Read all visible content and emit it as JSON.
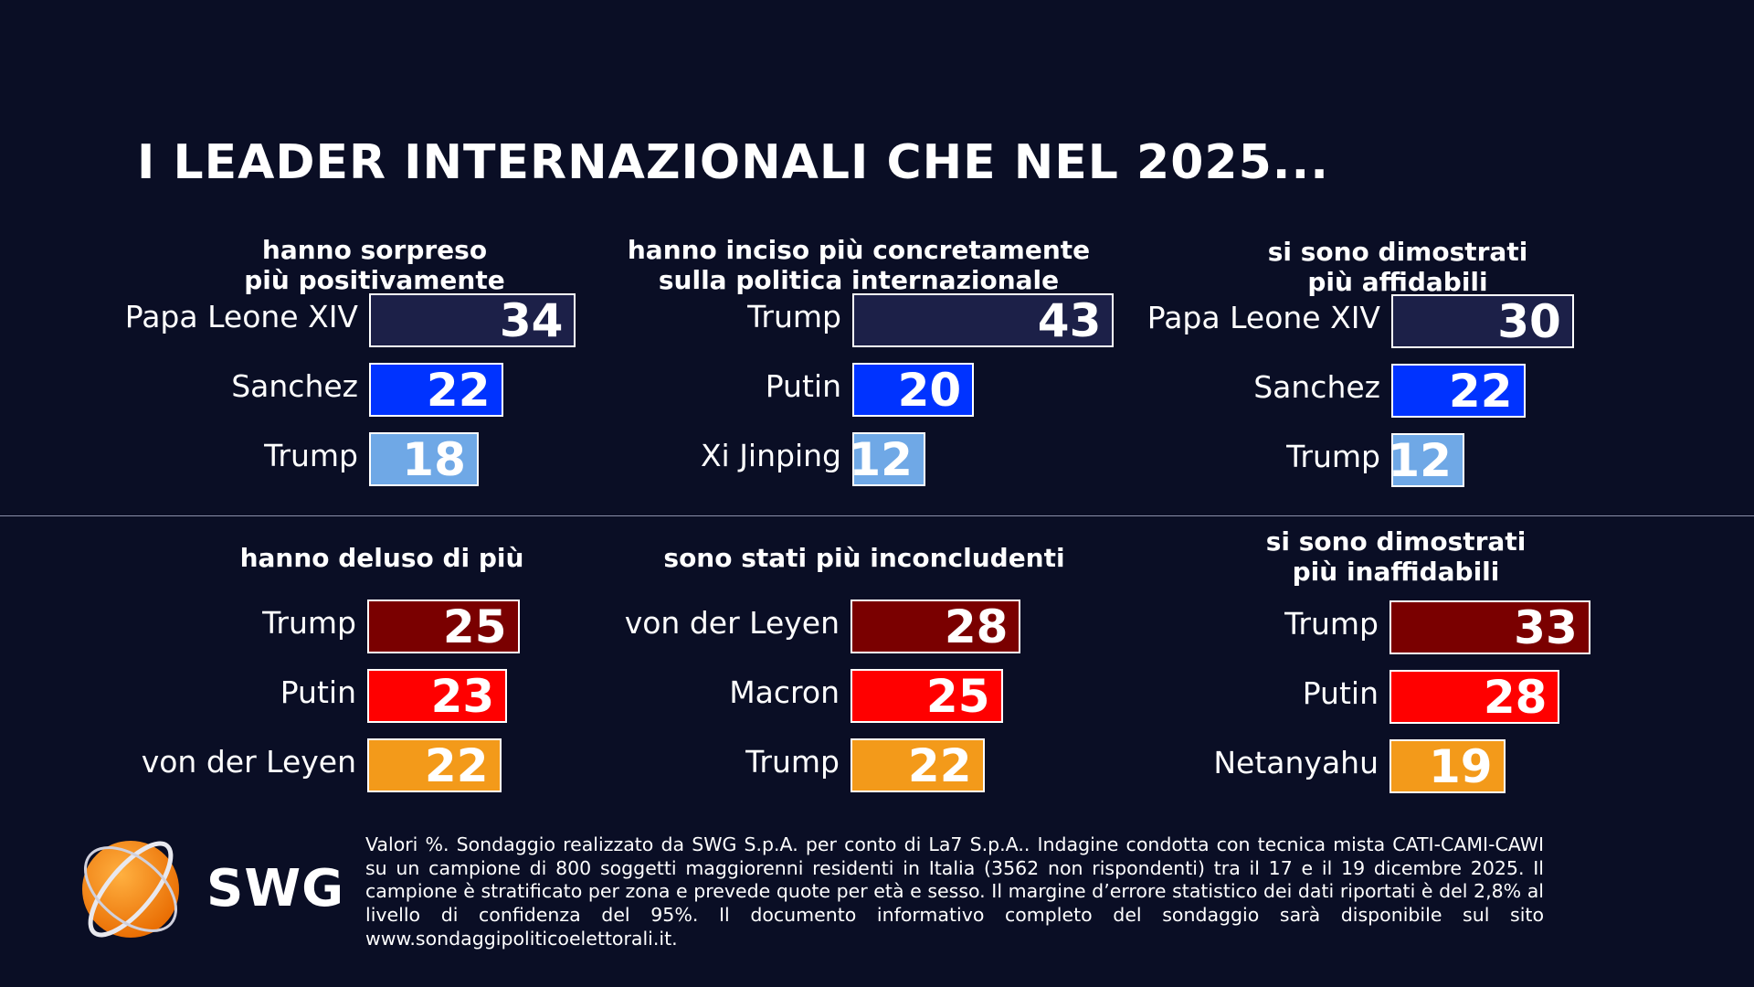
{
  "title": "I LEADER INTERNAZIONALI CHE NEL 2025...",
  "logo_text": "SWG",
  "footnote": "Valori %. Sondaggio realizzato da SWG S.p.A. per conto di La7 S.p.A.. Indagine condotta con tecnica mista CATI-CAMI-CAWI su un campione di 800 soggetti maggiorenni residenti in Italia (3562 non rispondenti) tra il 17 e il 19 dicembre 2025. Il campione è stratificato per zona e prevede quote per età e sesso. Il margine d’errore statistico dei dati riportati è del 2,8% al livello di confidenza del 95%. Il documento informativo completo del sondaggio sarà disponibile sul sito www.sondaggipoliticoelettorali.it.",
  "chart_data": [
    {
      "type": "bar",
      "title": "hanno sorpreso\npiù positivamente",
      "categories": [
        "Papa Leone XIV",
        "Sanchez",
        "Trump"
      ],
      "values": [
        34,
        22,
        18
      ],
      "colors": [
        "#1c2048",
        "#0033ff",
        "#6fa8e6"
      ]
    },
    {
      "type": "bar",
      "title": "hanno inciso più concretamente\nsulla politica internazionale",
      "categories": [
        "Trump",
        "Putin",
        "Xi Jinping"
      ],
      "values": [
        43,
        20,
        12
      ],
      "colors": [
        "#1c2048",
        "#0033ff",
        "#6fa8e6"
      ]
    },
    {
      "type": "bar",
      "title": "si sono dimostrati\npiù affidabili",
      "categories": [
        "Papa Leone XIV",
        "Sanchez",
        "Trump"
      ],
      "values": [
        30,
        22,
        12
      ],
      "colors": [
        "#1c2048",
        "#0033ff",
        "#6fa8e6"
      ]
    },
    {
      "type": "bar",
      "title": "hanno deluso di più",
      "categories": [
        "Trump",
        "Putin",
        "von der Leyen"
      ],
      "values": [
        25,
        23,
        22
      ],
      "colors": [
        "#7a0000",
        "#ff0000",
        "#f39a1a"
      ]
    },
    {
      "type": "bar",
      "title": "sono stati più inconcludenti",
      "categories": [
        "von der Leyen",
        "Macron",
        "Trump"
      ],
      "values": [
        28,
        25,
        22
      ],
      "colors": [
        "#7a0000",
        "#ff0000",
        "#f39a1a"
      ]
    },
    {
      "type": "bar",
      "title": "si sono dimostrati\npiù inaffidabili",
      "categories": [
        "Trump",
        "Putin",
        "Netanyahu"
      ],
      "values": [
        33,
        28,
        19
      ],
      "colors": [
        "#7a0000",
        "#ff0000",
        "#f39a1a"
      ]
    }
  ]
}
